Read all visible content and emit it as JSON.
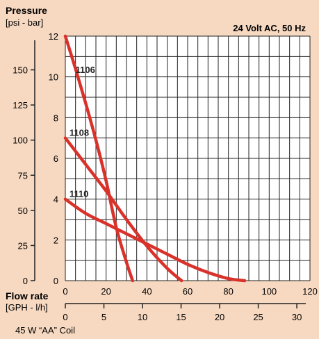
{
  "chart_data": {
    "type": "line",
    "title": "24  Volt AC, 50 Hz",
    "y_axis_title": "Pressure",
    "y_axis_units": "[psi - bar]",
    "x_axis_title": "Flow rate",
    "x_axis_units": "[GPH - l/h]",
    "footnote": "45 W “AA” Coil",
    "x_lh": {
      "ticks": [
        "0",
        "20",
        "40",
        "60",
        "80",
        "100",
        "120"
      ],
      "range": [
        0,
        120
      ]
    },
    "x_gph": {
      "ticks": [
        "0",
        "5",
        "10",
        "15",
        "20",
        "25",
        "30"
      ],
      "range": [
        0,
        31.7
      ]
    },
    "y_bar": {
      "ticks": [
        "0",
        "2",
        "4",
        "6",
        "8",
        "10",
        "12"
      ],
      "range": [
        0,
        12
      ]
    },
    "y_psi": {
      "ticks": [
        "0",
        "25",
        "50",
        "75",
        "100",
        "125",
        "150"
      ],
      "range": [
        0,
        174
      ]
    },
    "grid": true,
    "series": [
      {
        "name": "1106",
        "color": "#d9322b",
        "x": [
          0,
          5,
          10,
          15,
          20,
          25,
          30,
          33
        ],
        "y": [
          12,
          10.4,
          8.7,
          6.9,
          4.9,
          2.6,
          0.9,
          0
        ]
      },
      {
        "name": "1108",
        "color": "#d9322b",
        "x": [
          0,
          10,
          20,
          30,
          40,
          50,
          57
        ],
        "y": [
          7,
          5.7,
          4.4,
          3.0,
          1.7,
          0.6,
          0
        ]
      },
      {
        "name": "1110",
        "color": "#d9322b",
        "x": [
          0,
          10,
          20,
          30,
          40,
          50,
          60,
          70,
          80,
          88
        ],
        "y": [
          4,
          3.3,
          2.8,
          2.3,
          1.8,
          1.3,
          0.8,
          0.4,
          0.1,
          0
        ]
      }
    ]
  }
}
